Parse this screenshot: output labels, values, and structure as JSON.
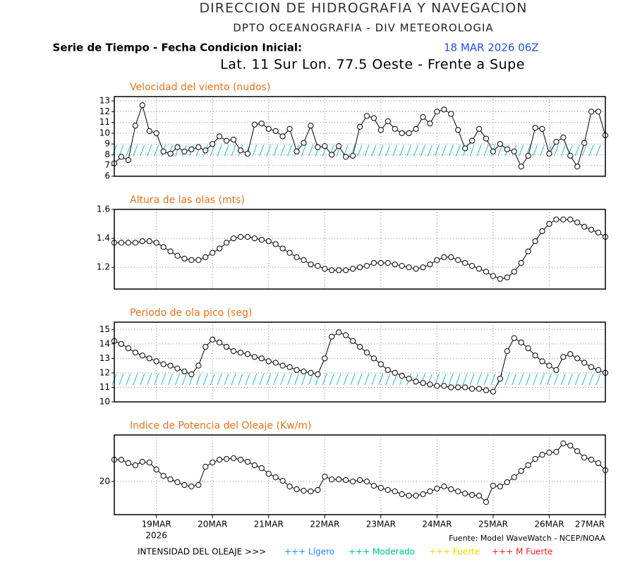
{
  "header": {
    "title": "DIRECCION DE HIDROGRAFIA Y NAVEGACION",
    "subtitle": "DPTO OCEANOGRAFIA - DIV METEOROLOGIA",
    "run_label": "Serie de Tiempo - Fecha Condicion Inicial:",
    "run_date": "18 MAR 2026 06Z",
    "location": "Lat. 11 Sur  Lon. 77.5 Oeste - Frente a Supe"
  },
  "x_axis": {
    "x": [
      -0.75,
      -0.625,
      -0.5,
      -0.375,
      -0.25,
      -0.125,
      0,
      0.125,
      0.25,
      0.375,
      0.5,
      0.625,
      0.75,
      0.875,
      1,
      1.125,
      1.25,
      1.375,
      1.5,
      1.625,
      1.75,
      1.875,
      2,
      2.125,
      2.25,
      2.375,
      2.5,
      2.625,
      2.75,
      2.875,
      3,
      3.125,
      3.25,
      3.375,
      3.5,
      3.625,
      3.75,
      3.875,
      4,
      4.125,
      4.25,
      4.375,
      4.5,
      4.625,
      4.75,
      4.875,
      5,
      5.125,
      5.25,
      5.375,
      5.5,
      5.625,
      5.75,
      5.875,
      6,
      6.125,
      6.25,
      6.375,
      6.5,
      6.625,
      6.75,
      6.875,
      7,
      7.125,
      7.25,
      7.375,
      7.5,
      7.625,
      7.75,
      7.875,
      8
    ],
    "xlim": [
      -0.75,
      8
    ],
    "xticks": [
      {
        "value": 0,
        "label": "19MAR"
      },
      {
        "value": 1,
        "label": "20MAR"
      },
      {
        "value": 2,
        "label": "21MAR"
      },
      {
        "value": 3,
        "label": "22MAR"
      },
      {
        "value": 4,
        "label": "23MAR"
      },
      {
        "value": 5,
        "label": "24MAR"
      },
      {
        "value": 6,
        "label": "25MAR"
      },
      {
        "value": 7,
        "label": "26MAR"
      },
      {
        "value": 8,
        "label": "27MAR"
      }
    ],
    "year": "2026"
  },
  "chart_data": [
    {
      "type": "line",
      "title": "Velocidad del viento (nudos)",
      "color": "#000000",
      "ylim": [
        6,
        13.4
      ],
      "yticks": [
        6,
        7,
        8,
        9,
        10,
        11,
        12,
        13
      ],
      "grid": true,
      "values": [
        7.2,
        7.8,
        7.5,
        10.7,
        12.6,
        10.2,
        10.0,
        8.3,
        8.1,
        8.7,
        8.3,
        8.5,
        8.7,
        8.4,
        9.0,
        9.7,
        9.3,
        9.4,
        8.4,
        8.1,
        10.8,
        10.9,
        10.4,
        10.2,
        9.7,
        10.4,
        8.3,
        9.1,
        10.7,
        8.7,
        8.8,
        8.0,
        8.8,
        7.8,
        7.9,
        10.6,
        11.6,
        11.4,
        10.3,
        11.1,
        10.4,
        10.0,
        10.0,
        10.4,
        11.5,
        10.9,
        12.0,
        12.2,
        11.8,
        10.3,
        8.6,
        9.3,
        10.4,
        9.5,
        8.3,
        9.0,
        8.5,
        8.3,
        6.9,
        7.9,
        10.5,
        10.4,
        8.1,
        9.2,
        9.6,
        7.9,
        6.9,
        9.1,
        12.0,
        12.0,
        9.8
      ]
    },
    {
      "type": "line",
      "title": "Altura de las olas (mts)",
      "color": "#000000",
      "ylim": [
        1.05,
        1.6
      ],
      "yticks": [
        1.2,
        1.4,
        1.6
      ],
      "grid": true,
      "values": [
        1.37,
        1.37,
        1.37,
        1.37,
        1.38,
        1.38,
        1.37,
        1.34,
        1.31,
        1.28,
        1.26,
        1.25,
        1.25,
        1.27,
        1.3,
        1.33,
        1.37,
        1.4,
        1.41,
        1.41,
        1.4,
        1.39,
        1.38,
        1.36,
        1.33,
        1.3,
        1.27,
        1.25,
        1.22,
        1.21,
        1.19,
        1.18,
        1.18,
        1.18,
        1.19,
        1.2,
        1.21,
        1.23,
        1.23,
        1.23,
        1.22,
        1.21,
        1.2,
        1.19,
        1.2,
        1.22,
        1.25,
        1.27,
        1.27,
        1.25,
        1.23,
        1.21,
        1.19,
        1.17,
        1.14,
        1.12,
        1.13,
        1.17,
        1.23,
        1.31,
        1.38,
        1.45,
        1.5,
        1.53,
        1.53,
        1.53,
        1.51,
        1.48,
        1.46,
        1.44,
        1.41
      ]
    },
    {
      "type": "line",
      "title": "Periodo de ola pico (seg)",
      "color": "#000000",
      "ylim": [
        10,
        15.5
      ],
      "yticks": [
        10,
        11,
        12,
        13,
        14,
        15
      ],
      "grid": true,
      "values": [
        14.2,
        14.0,
        13.7,
        13.4,
        13.2,
        13.0,
        12.8,
        12.6,
        12.5,
        12.3,
        12.1,
        11.9,
        12.5,
        13.8,
        14.3,
        14.1,
        13.8,
        13.5,
        13.4,
        13.3,
        13.1,
        13.0,
        12.8,
        12.7,
        12.5,
        12.4,
        12.2,
        12.1,
        12.0,
        11.9,
        13.0,
        14.5,
        14.8,
        14.6,
        14.2,
        13.8,
        13.4,
        13.0,
        12.6,
        12.2,
        12.0,
        11.8,
        11.6,
        11.4,
        11.3,
        11.2,
        11.1,
        11.1,
        11.0,
        11.0,
        11.0,
        10.9,
        10.9,
        10.8,
        10.7,
        11.6,
        13.5,
        14.4,
        14.1,
        13.7,
        13.2,
        12.8,
        12.5,
        12.2,
        13.1,
        13.3,
        13.0,
        12.7,
        12.4,
        12.2,
        12.0
      ]
    },
    {
      "type": "line",
      "title": "Indice de Potencia del Oleaje (Kw/m)",
      "color": "#000000",
      "ylim": [
        15.3,
        26.6
      ],
      "yticks": [
        20
      ],
      "grid": true,
      "values": [
        23.1,
        23.1,
        22.6,
        22.3,
        22.8,
        22.7,
        21.7,
        20.8,
        20.3,
        19.9,
        19.5,
        19.3,
        19.5,
        22.1,
        22.7,
        23.1,
        23.2,
        23.3,
        23.1,
        22.8,
        22.3,
        21.9,
        21.1,
        20.6,
        20.1,
        19.3,
        18.9,
        18.7,
        18.6,
        18.8,
        20.7,
        20.3,
        20.3,
        20.2,
        20.0,
        20.2,
        20.0,
        19.4,
        19.1,
        18.8,
        18.6,
        18.2,
        18.0,
        18.0,
        18.2,
        18.6,
        19.0,
        19.3,
        18.9,
        18.6,
        18.3,
        18.1,
        18.0,
        17.1,
        19.4,
        19.3,
        19.9,
        20.6,
        21.5,
        22.3,
        23.2,
        23.8,
        24.1,
        24.2,
        25.4,
        25.1,
        24.3,
        23.4,
        23.1,
        22.6,
        21.6
      ]
    }
  ],
  "source": "Fuente: Model WaveWatch - NCEP/NOAA",
  "legend": {
    "title": "INTENSIDAD DEL OLEAJE >>>",
    "items": [
      {
        "label": "+++ Lígero",
        "color": "#1a8cff"
      },
      {
        "label": "+++ Moderado",
        "color": "#00c080"
      },
      {
        "label": "+++ Fuerte",
        "color": "#e8d800"
      },
      {
        "label": "+++ M Fuerte",
        "color": "#ff2020"
      }
    ]
  }
}
